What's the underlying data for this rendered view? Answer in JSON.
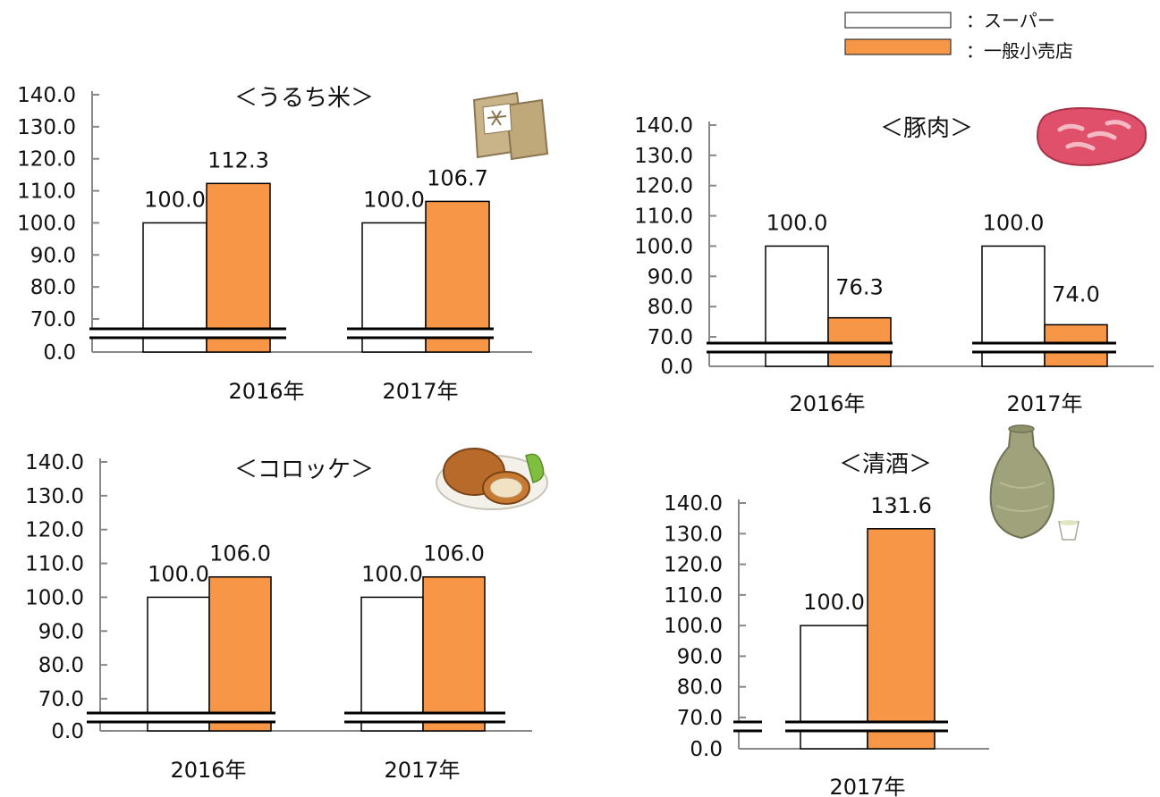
{
  "legend": {
    "items": [
      {
        "label": "：スーパー",
        "color": "#ffffff"
      },
      {
        "label": "：一般小売店",
        "color": "#f79646"
      }
    ]
  },
  "colors": {
    "super": "#ffffff",
    "retail": "#f79646",
    "axis": "#888888",
    "outline": "#000000"
  },
  "icons": [
    "rice-bag-icon",
    "pork-meat-icon",
    "croquette-icon",
    "sake-bottle-icon"
  ],
  "chart_data": [
    {
      "type": "bar",
      "title": "＜うるち米＞",
      "categories": [
        "2016年",
        "2017年"
      ],
      "series": [
        {
          "name": "スーパー",
          "values": [
            100.0,
            100.0
          ]
        },
        {
          "name": "一般小売店",
          "values": [
            112.3,
            106.7
          ]
        }
      ],
      "ylim": [
        0,
        140
      ],
      "y_break": [
        0,
        70
      ],
      "y_ticks": [
        "0.0",
        "70.0",
        "80.0",
        "90.0",
        "100.0",
        "110.0",
        "120.0",
        "130.0",
        "140.0"
      ],
      "value_labels": [
        [
          "100.0",
          "112.3"
        ],
        [
          "100.0",
          "106.7"
        ]
      ],
      "grid": false
    },
    {
      "type": "bar",
      "title": "＜豚肉＞",
      "categories": [
        "2016年",
        "2017年"
      ],
      "series": [
        {
          "name": "スーパー",
          "values": [
            100.0,
            100.0
          ]
        },
        {
          "name": "一般小売店",
          "values": [
            76.3,
            74.0
          ]
        }
      ],
      "ylim": [
        0,
        140
      ],
      "y_break": [
        0,
        70
      ],
      "y_ticks": [
        "0.0",
        "70.0",
        "80.0",
        "90.0",
        "100.0",
        "110.0",
        "120.0",
        "130.0",
        "140.0"
      ],
      "value_labels": [
        [
          "100.0",
          "76.3"
        ],
        [
          "100.0",
          "74.0"
        ]
      ],
      "grid": false
    },
    {
      "type": "bar",
      "title": "＜コロッケ＞",
      "categories": [
        "2016年",
        "2017年"
      ],
      "series": [
        {
          "name": "スーパー",
          "values": [
            100.0,
            100.0
          ]
        },
        {
          "name": "一般小売店",
          "values": [
            106.0,
            106.0
          ]
        }
      ],
      "ylim": [
        0,
        140
      ],
      "y_break": [
        0,
        70
      ],
      "y_ticks": [
        "0.0",
        "70.0",
        "80.0",
        "90.0",
        "100.0",
        "110.0",
        "120.0",
        "130.0",
        "140.0"
      ],
      "value_labels": [
        [
          "100.0",
          "106.0"
        ],
        [
          "100.0",
          "106.0"
        ]
      ],
      "grid": false
    },
    {
      "type": "bar",
      "title": "＜清酒＞",
      "categories": [
        "2017年"
      ],
      "series": [
        {
          "name": "スーパー",
          "values": [
            100.0
          ]
        },
        {
          "name": "一般小売店",
          "values": [
            131.6
          ]
        }
      ],
      "ylim": [
        0,
        140
      ],
      "y_break": [
        0,
        70
      ],
      "y_ticks": [
        "0.0",
        "70.0",
        "80.0",
        "90.0",
        "100.0",
        "110.0",
        "120.0",
        "130.0",
        "140.0"
      ],
      "value_labels": [
        [
          "100.0",
          "131.6"
        ]
      ],
      "grid": false
    }
  ]
}
